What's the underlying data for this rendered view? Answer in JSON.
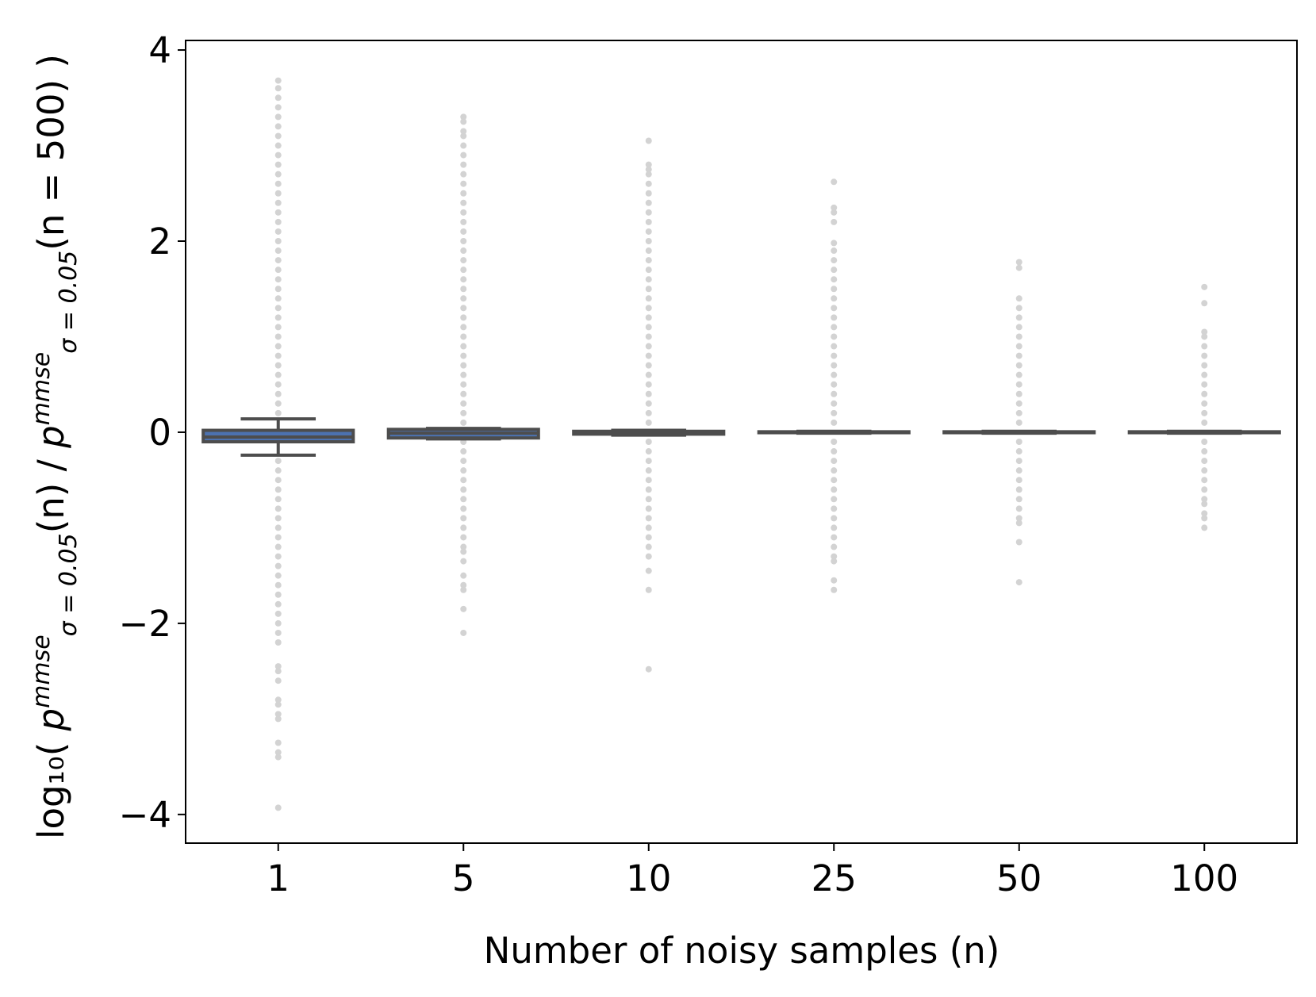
{
  "chart_data": {
    "type": "box",
    "x_label": "Number of noisy samples (n)",
    "y_label": [
      "log₁₀( ",
      "p",
      "mmse",
      "σ = 0.05",
      "(n) / ",
      "p",
      "mmse",
      "σ = 0.05",
      "(n = 500) )"
    ],
    "categories": [
      "1",
      "5",
      "10",
      "25",
      "50",
      "100"
    ],
    "box_color": "#4c72b0",
    "line_color": "#4d4d4d",
    "flier_color": "#d3d3d3",
    "ylim": [
      -4.3,
      4.1
    ],
    "yticks": [
      {
        "value": -4,
        "label": "−4"
      },
      {
        "value": -2,
        "label": "−2"
      },
      0,
      2,
      4
    ],
    "boxes": [
      {
        "whislo": -0.24,
        "q1": -0.1,
        "med": -0.05,
        "q3": 0.02,
        "whishi": 0.14,
        "fliers": [
          3.68,
          3.6,
          3.5,
          3.4,
          3.3,
          3.2,
          3.1,
          3.0,
          2.9,
          2.8,
          2.7,
          2.6,
          2.5,
          2.4,
          2.3,
          2.2,
          2.1,
          2.0,
          1.9,
          1.8,
          1.7,
          1.6,
          1.5,
          1.4,
          1.3,
          1.2,
          1.1,
          1.0,
          0.9,
          0.8,
          0.7,
          0.6,
          0.5,
          0.4,
          0.3,
          0.2,
          -0.3,
          -0.4,
          -0.5,
          -0.6,
          -0.7,
          -0.8,
          -0.9,
          -1.0,
          -1.1,
          -1.2,
          -1.3,
          -1.4,
          -1.5,
          -1.6,
          -1.7,
          -1.8,
          -1.9,
          -2.0,
          -2.1,
          -2.2,
          -2.45,
          -2.5,
          -2.6,
          -2.8,
          -2.85,
          -2.95,
          -3.0,
          -3.25,
          -3.35,
          -3.4,
          -3.93
        ]
      },
      {
        "whislo": -0.07,
        "q1": -0.06,
        "med": -0.01,
        "q3": 0.03,
        "whishi": 0.04,
        "fliers": [
          3.3,
          3.25,
          3.15,
          3.1,
          3.0,
          2.9,
          2.8,
          2.7,
          2.6,
          2.5,
          2.4,
          2.3,
          2.2,
          2.1,
          2.0,
          1.9,
          1.8,
          1.7,
          1.6,
          1.5,
          1.4,
          1.3,
          1.2,
          1.1,
          1.0,
          0.9,
          0.8,
          0.7,
          0.6,
          0.5,
          0.4,
          0.3,
          0.2,
          0.1,
          -0.1,
          -0.2,
          -0.3,
          -0.4,
          -0.5,
          -0.6,
          -0.7,
          -0.8,
          -0.9,
          -1.0,
          -1.1,
          -1.2,
          -1.25,
          -1.35,
          -1.5,
          -1.6,
          -1.65,
          -1.85,
          -2.1
        ]
      },
      {
        "whislo": -0.03,
        "q1": -0.02,
        "med": 0,
        "q3": 0.01,
        "whishi": 0.02,
        "fliers": [
          3.05,
          2.8,
          2.75,
          2.7,
          2.6,
          2.5,
          2.4,
          2.3,
          2.2,
          2.1,
          2.0,
          1.9,
          1.8,
          1.7,
          1.6,
          1.5,
          1.4,
          1.3,
          1.2,
          1.1,
          1.0,
          0.9,
          0.8,
          0.7,
          0.6,
          0.5,
          0.4,
          0.3,
          0.2,
          0.1,
          -0.1,
          -0.2,
          -0.3,
          -0.4,
          -0.5,
          -0.6,
          -0.7,
          -0.8,
          -0.9,
          -1.0,
          -1.1,
          -1.2,
          -1.3,
          -1.45,
          -1.65,
          -2.48
        ]
      },
      {
        "whislo": -0.01,
        "q1": -0.005,
        "med": 0,
        "q3": 0.005,
        "whishi": 0.01,
        "fliers": [
          2.62,
          2.35,
          2.3,
          2.2,
          1.98,
          1.9,
          1.8,
          1.7,
          1.6,
          1.5,
          1.4,
          1.3,
          1.2,
          1.1,
          1.0,
          0.9,
          0.8,
          0.7,
          0.6,
          0.5,
          0.4,
          0.3,
          0.2,
          0.1,
          -0.1,
          -0.2,
          -0.3,
          -0.4,
          -0.5,
          -0.6,
          -0.7,
          -0.8,
          -0.9,
          -1.0,
          -1.1,
          -1.2,
          -1.3,
          -1.35,
          -1.55,
          -1.65
        ]
      },
      {
        "whislo": -0.01,
        "q1": -0.005,
        "med": 0,
        "q3": 0.005,
        "whishi": 0.01,
        "fliers": [
          1.78,
          1.72,
          1.4,
          1.3,
          1.2,
          1.1,
          1.0,
          0.9,
          0.8,
          0.7,
          0.6,
          0.5,
          0.4,
          0.3,
          0.2,
          0.1,
          -0.1,
          -0.2,
          -0.3,
          -0.4,
          -0.5,
          -0.6,
          -0.7,
          -0.8,
          -0.9,
          -0.95,
          -1.15,
          -1.57
        ]
      },
      {
        "whislo": -0.01,
        "q1": -0.005,
        "med": 0,
        "q3": 0.005,
        "whishi": 0.01,
        "fliers": [
          1.52,
          1.35,
          1.05,
          1.0,
          0.9,
          0.8,
          0.7,
          0.6,
          0.5,
          0.4,
          0.3,
          0.2,
          0.1,
          -0.1,
          -0.2,
          -0.3,
          -0.4,
          -0.5,
          -0.6,
          -0.7,
          -0.75,
          -0.85,
          -0.9,
          -1.0
        ]
      }
    ]
  }
}
